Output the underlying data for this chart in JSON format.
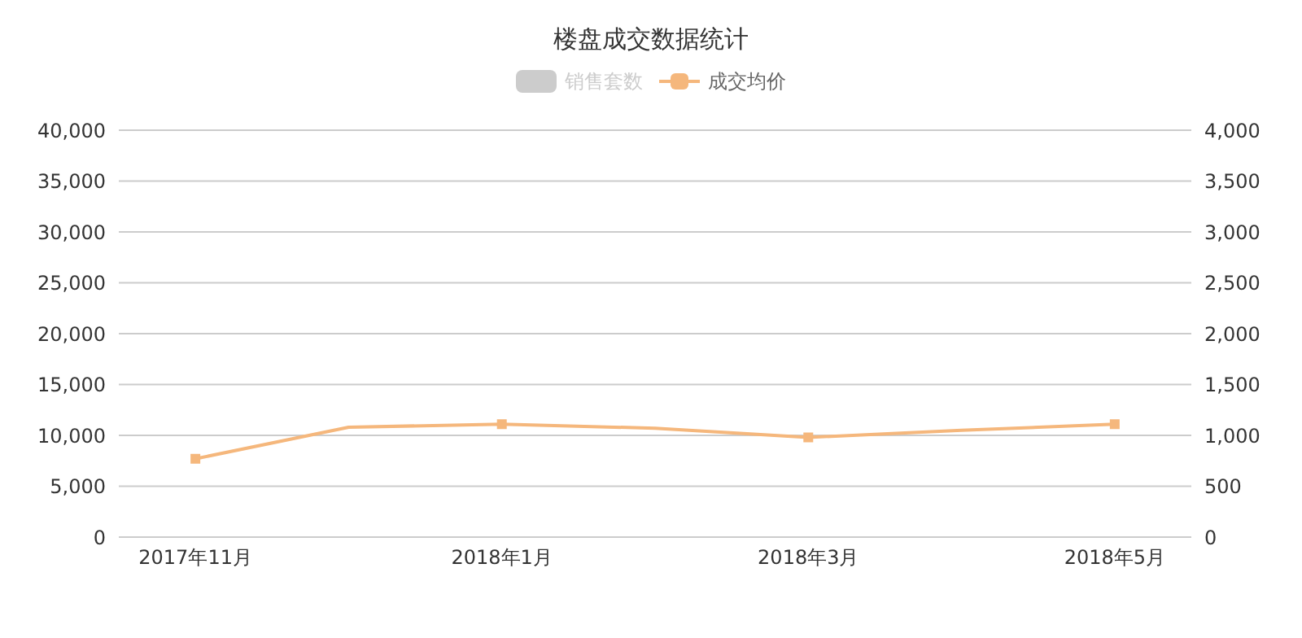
{
  "chart_data": {
    "type": "line",
    "title": "楼盘成交数据统计",
    "categories": [
      "2017年11月",
      null,
      "2018年1月",
      null,
      "2018年3月",
      null,
      "2018年5月"
    ],
    "series": [
      {
        "name": "销售套数",
        "type": "bar",
        "color": "#cccccc",
        "values": [
          null,
          null,
          null,
          null,
          null,
          null,
          null
        ]
      },
      {
        "name": "成交均价",
        "color": "#f5b77c",
        "values": [
          7700,
          10800,
          11100,
          10700,
          9800,
          10500,
          11100
        ]
      }
    ],
    "ylim": [
      0,
      40000
    ],
    "yticks": [
      {
        "value": 0,
        "label": "0"
      },
      {
        "value": 5000,
        "label": "5,000"
      },
      {
        "value": 10000,
        "label": "10,000"
      },
      {
        "value": 15000,
        "label": "15,000"
      },
      {
        "value": 20000,
        "label": "20,000"
      },
      {
        "value": 25000,
        "label": "25,000"
      },
      {
        "value": 30000,
        "label": "30,000"
      },
      {
        "value": 35000,
        "label": "35,000"
      },
      {
        "value": 40000,
        "label": "40,000"
      }
    ],
    "y2lim": [
      0,
      4000
    ],
    "y2ticks": [
      {
        "value": 0,
        "label": "0"
      },
      {
        "value": 500,
        "label": "500"
      },
      {
        "value": 1000,
        "label": "1,000"
      },
      {
        "value": 1500,
        "label": "1,500"
      },
      {
        "value": 2000,
        "label": "2,000"
      },
      {
        "value": 2500,
        "label": "2,500"
      },
      {
        "value": 3000,
        "label": "3,000"
      },
      {
        "value": 3500,
        "label": "3,500"
      },
      {
        "value": 4000,
        "label": "4,000"
      }
    ],
    "grid": "y",
    "legend": "top",
    "marker": "square",
    "line_style": "solid"
  }
}
